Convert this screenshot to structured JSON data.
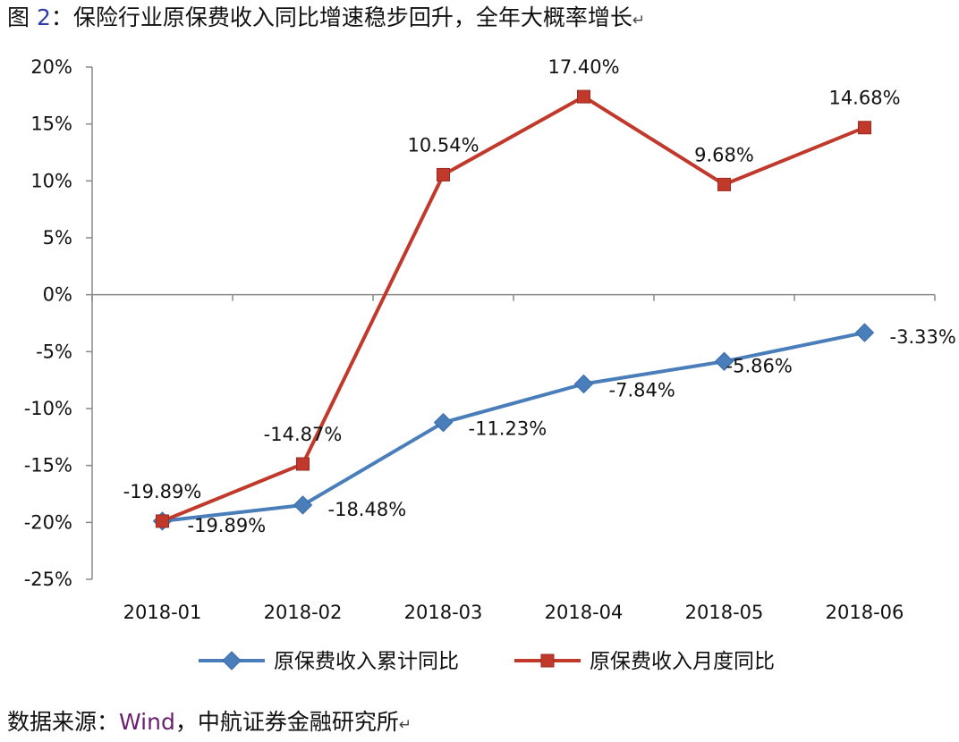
{
  "caption": {
    "prefix": "图",
    "number": "2",
    "text": "：保险行业原保费收入同比增速稳步回升，全年大概率增长",
    "mark": "↵"
  },
  "source": {
    "prefix": "数据来源：",
    "wind": "Wind",
    "rest": "，中航证券金融研究所",
    "mark": "↵"
  },
  "colors": {
    "series1": "#4a7ebb",
    "series2": "#c0392b",
    "axis": "#888888"
  },
  "chart_data": {
    "type": "line",
    "title": "保险行业原保费收入同比增速稳步回升，全年大概率增长",
    "xlabel": "",
    "ylabel": "",
    "categories": [
      "2018-01",
      "2018-02",
      "2018-03",
      "2018-04",
      "2018-05",
      "2018-06"
    ],
    "ylim": [
      -25,
      20
    ],
    "yticks": [
      -25,
      -20,
      -15,
      -10,
      -5,
      0,
      5,
      10,
      15,
      20
    ],
    "ytick_labels": [
      "-25%",
      "-20%",
      "-15%",
      "-10%",
      "-5%",
      "0%",
      "5%",
      "10%",
      "15%",
      "20%"
    ],
    "legend_position": "bottom",
    "series": [
      {
        "name": "原保费收入累计同比",
        "marker": "diamond",
        "values": [
          -19.89,
          -18.48,
          -11.23,
          -7.84,
          -5.86,
          -3.33
        ],
        "labels": [
          "-19.89%",
          "-18.48%",
          "-11.23%",
          "-7.84%",
          "-5.86%",
          "-3.33%"
        ]
      },
      {
        "name": "原保费收入月度同比",
        "marker": "square",
        "values": [
          -19.89,
          -14.87,
          10.54,
          17.4,
          9.68,
          14.68
        ],
        "labels": [
          "-19.89%",
          "-14.87%",
          "10.54%",
          "17.40%",
          "9.68%",
          "14.68%"
        ]
      }
    ]
  }
}
